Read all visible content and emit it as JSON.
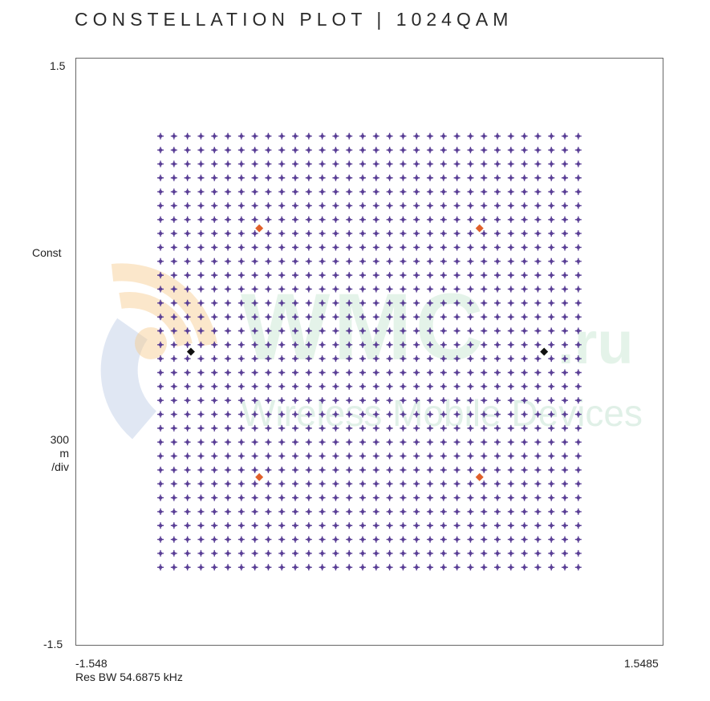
{
  "title": "CONSTELLATION PLOT | 1024QAM",
  "axes": {
    "y_top": "1.5",
    "y_bottom": "-1.5",
    "y_name": "Const",
    "scale_value": "300",
    "scale_unit": "m",
    "scale_per": "/div",
    "x_left": "-1.548",
    "x_right": "1.5485",
    "res_bw": "Res BW 54.6875 kHz"
  },
  "watermark": {
    "brand": "WMC",
    "suffix": ".ru",
    "tagline": "Wireless Mobile Devices"
  },
  "colors": {
    "symbol": "#5a3f96",
    "reference": "#e0602a",
    "pilot": "#111111",
    "frame": "#666666"
  },
  "chart_data": {
    "type": "scatter",
    "modulation": "1024QAM",
    "grid_points_per_axis": 32,
    "xlim": [
      -1.548,
      1.5485
    ],
    "ylim": [
      -1.5,
      1.5
    ],
    "symbol_range": [
      -1.1,
      1.1
    ],
    "grid": false,
    "series": [
      {
        "color": "#5a3f96",
        "marker": "plus",
        "description_points": "32x32 constellation grid, I and Q from -1.1 to 1.1 in equal steps"
      },
      {
        "color": "#e0602a",
        "marker": "diamond",
        "points": [
          [
            -0.58,
            0.63
          ],
          [
            0.58,
            0.63
          ],
          [
            -0.58,
            -0.64
          ],
          [
            0.58,
            -0.64
          ]
        ]
      },
      {
        "color": "#111111",
        "marker": "diamond",
        "points": [
          [
            -0.94,
            0.0
          ],
          [
            0.92,
            0.0
          ]
        ]
      }
    ]
  }
}
